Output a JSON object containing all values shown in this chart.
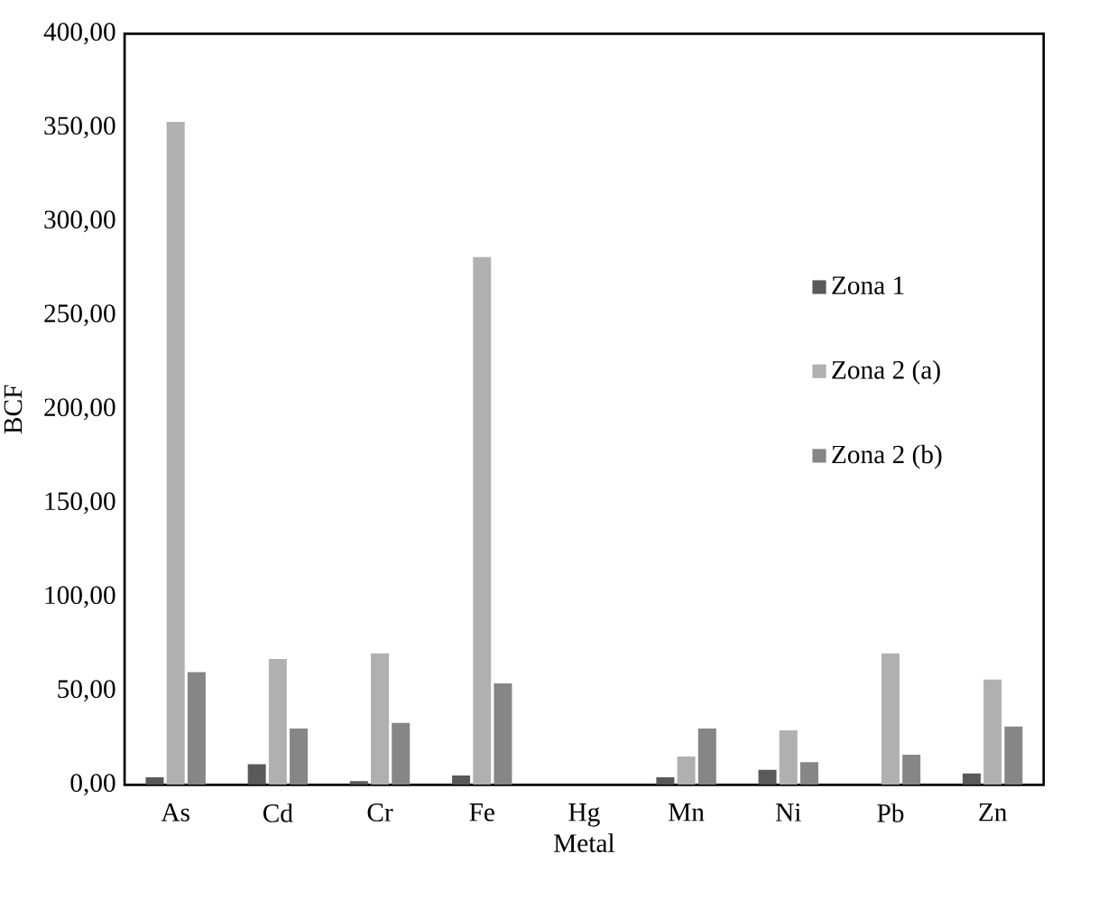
{
  "chart_data": {
    "type": "bar",
    "xlabel": "Metal",
    "ylabel": "BCF",
    "categories": [
      "As",
      "Cd",
      "Cr",
      "Fe",
      "Hg",
      "Mn",
      "Ni",
      "Pb",
      "Zn"
    ],
    "series": [
      {
        "name": "Zona 1",
        "color": "#595959",
        "values": [
          4,
          11,
          2,
          5,
          0,
          4,
          8,
          0,
          6
        ]
      },
      {
        "name": "Zona 2 (a)",
        "color": "#b0b0b0",
        "values": [
          353,
          67,
          70,
          281,
          0,
          15,
          29,
          70,
          56
        ]
      },
      {
        "name": "Zona 2 (b)",
        "color": "#868686",
        "values": [
          60,
          30,
          33,
          54,
          0,
          30,
          12,
          16,
          31
        ]
      }
    ],
    "ylim": [
      0,
      400
    ],
    "yticks": [
      {
        "value": 0,
        "label": "0,00"
      },
      {
        "value": 50,
        "label": "50,00"
      },
      {
        "value": 100,
        "label": "100,00"
      },
      {
        "value": 150,
        "label": "150,00"
      },
      {
        "value": 200,
        "label": "200,00"
      },
      {
        "value": 250,
        "label": "250,00"
      },
      {
        "value": 300,
        "label": "300,00"
      },
      {
        "value": 350,
        "label": "350,00"
      },
      {
        "value": 400,
        "label": "400,00"
      }
    ],
    "legend": "right",
    "grid": false
  }
}
